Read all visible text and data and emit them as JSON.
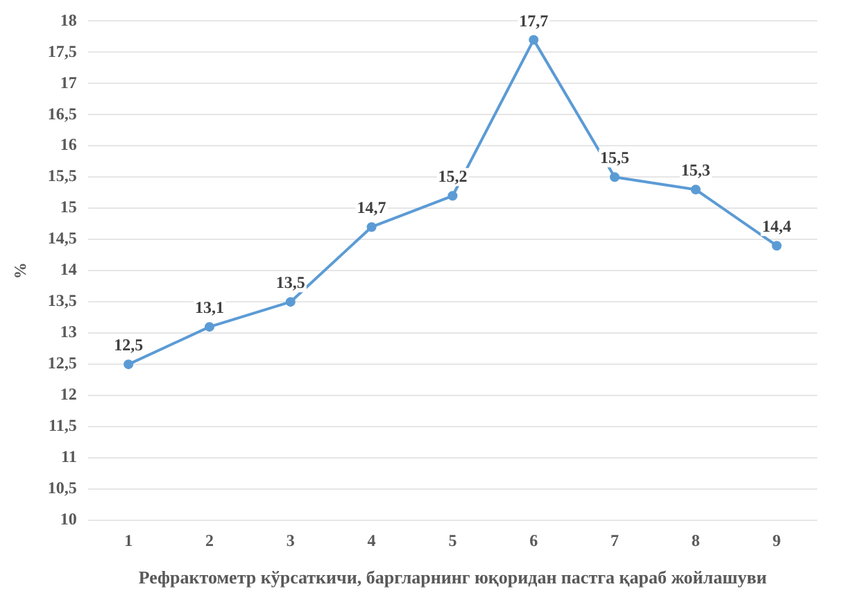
{
  "chart_data": {
    "type": "line",
    "xlabel": "Рефрактометр кўрсаткичи, баргларнинг юқоридан пастга қараб жойлашуви",
    "ylabel": "%",
    "categories": [
      "1",
      "2",
      "3",
      "4",
      "5",
      "6",
      "7",
      "8",
      "9"
    ],
    "series": [
      {
        "color": "#5b9bd5",
        "values": [
          12.5,
          13.1,
          13.5,
          14.7,
          15.2,
          17.7,
          15.5,
          15.3,
          14.4
        ],
        "value_labels": [
          "12,5",
          "13,1",
          "13,5",
          "14,7",
          "15,2",
          "17,7",
          "15,5",
          "15,3",
          "14,4"
        ]
      }
    ],
    "ylim": [
      10,
      18
    ],
    "yticks": [
      {
        "value": 10,
        "label": "10"
      },
      {
        "value": 10.5,
        "label": "10,5"
      },
      {
        "value": 11,
        "label": "11"
      },
      {
        "value": 11.5,
        "label": "11,5"
      },
      {
        "value": 12,
        "label": "12"
      },
      {
        "value": 12.5,
        "label": "12,5"
      },
      {
        "value": 13,
        "label": "13"
      },
      {
        "value": 13.5,
        "label": "13,5"
      },
      {
        "value": 14,
        "label": "14"
      },
      {
        "value": 14.5,
        "label": "14,5"
      },
      {
        "value": 15,
        "label": "15"
      },
      {
        "value": 15.5,
        "label": "15,5"
      },
      {
        "value": 16,
        "label": "16"
      },
      {
        "value": 16.5,
        "label": "16,5"
      },
      {
        "value": 17,
        "label": "17"
      },
      {
        "value": 17.5,
        "label": "17,5"
      },
      {
        "value": 18,
        "label": "18"
      }
    ],
    "grid": "y",
    "legend": false,
    "marker": "circle",
    "line_style": "solid"
  }
}
